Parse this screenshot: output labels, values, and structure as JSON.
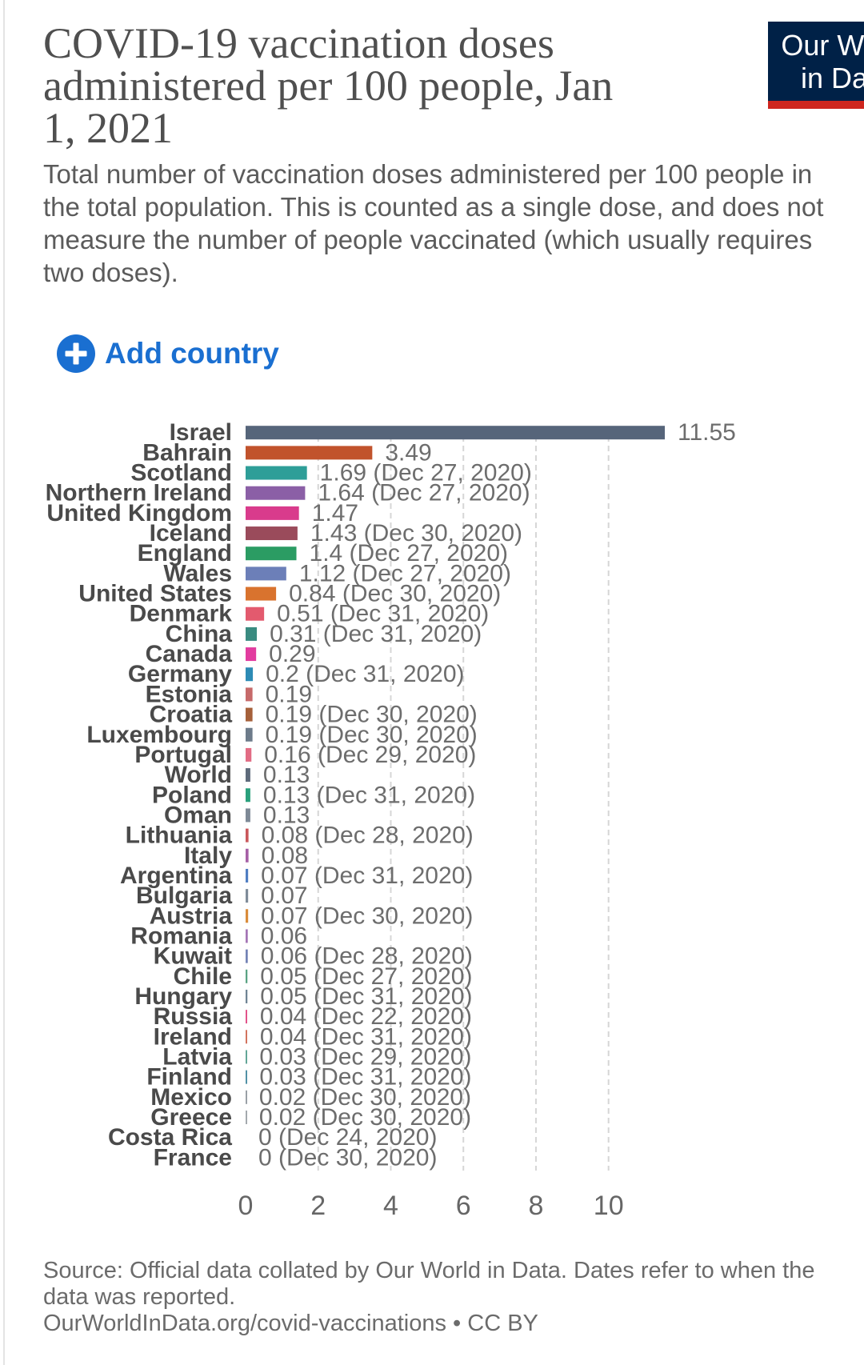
{
  "logo": {
    "line1": "Our World",
    "line2": "in Data",
    "background_color": "#002147",
    "stripe_color": "#ce261e"
  },
  "controls": {
    "add_country_label": "Add country",
    "add_country_icon": "plus-circle-icon",
    "accent_color": "#1a6fd1"
  },
  "chart_data": {
    "type": "bar",
    "orientation": "horizontal",
    "title": "COVID-19 vaccination doses administered per 100 people, Jan 1, 2021",
    "subtitle": "Total number of vaccination doses administered per 100 people in the total population. This is counted as a single dose, and does not measure the number of people vaccinated (which usually requires two doses).",
    "x_ticks": [
      0,
      2,
      4,
      6,
      8,
      10
    ],
    "xlim": [
      0,
      11.55
    ],
    "x_grid": true,
    "grid_style": "dashed",
    "rows": [
      {
        "name": "Israel",
        "value": 11.55,
        "color": "#56657a"
      },
      {
        "name": "Bahrain",
        "value": 3.49,
        "color": "#c1532c"
      },
      {
        "name": "Scotland",
        "value": 1.69,
        "date": "Dec 27, 2020",
        "color": "#2e9e98"
      },
      {
        "name": "Northern Ireland",
        "value": 1.64,
        "date": "Dec 27, 2020",
        "color": "#8b5fa6"
      },
      {
        "name": "United Kingdom",
        "value": 1.47,
        "color": "#d93b8c"
      },
      {
        "name": "Iceland",
        "value": 1.43,
        "date": "Dec 30, 2020",
        "color": "#9a4b5b"
      },
      {
        "name": "England",
        "value": 1.4,
        "date": "Dec 27, 2020",
        "color": "#2b9c63"
      },
      {
        "name": "Wales",
        "value": 1.12,
        "date": "Dec 27, 2020",
        "color": "#6c7fb8"
      },
      {
        "name": "United States",
        "value": 0.84,
        "date": "Dec 30, 2020",
        "color": "#d9732e"
      },
      {
        "name": "Denmark",
        "value": 0.51,
        "date": "Dec 31, 2020",
        "color": "#e35a6e"
      },
      {
        "name": "China",
        "value": 0.31,
        "date": "Dec 31, 2020",
        "color": "#3a8b80"
      },
      {
        "name": "Canada",
        "value": 0.29,
        "color": "#e23c9f"
      },
      {
        "name": "Germany",
        "value": 0.2,
        "date": "Dec 31, 2020",
        "color": "#2d8bb5"
      },
      {
        "name": "Estonia",
        "value": 0.19,
        "color": "#c66a6a"
      },
      {
        "name": "Croatia",
        "value": 0.19,
        "date": "Dec 30, 2020",
        "color": "#a5603a"
      },
      {
        "name": "Luxembourg",
        "value": 0.19,
        "date": "Dec 30, 2020",
        "color": "#6d7b8a"
      },
      {
        "name": "Portugal",
        "value": 0.16,
        "date": "Dec 29, 2020",
        "color": "#e26c84"
      },
      {
        "name": "World",
        "value": 0.13,
        "color": "#5e6b7b"
      },
      {
        "name": "Poland",
        "value": 0.13,
        "date": "Dec 31, 2020",
        "color": "#2aa07c"
      },
      {
        "name": "Oman",
        "value": 0.13,
        "color": "#7e8996"
      },
      {
        "name": "Lithuania",
        "value": 0.08,
        "date": "Dec 28, 2020",
        "color": "#c9575b"
      },
      {
        "name": "Italy",
        "value": 0.08,
        "color": "#a55fa5"
      },
      {
        "name": "Argentina",
        "value": 0.07,
        "date": "Dec 31, 2020",
        "color": "#4f7dc2"
      },
      {
        "name": "Bulgaria",
        "value": 0.07,
        "color": "#7f8c99"
      },
      {
        "name": "Austria",
        "value": 0.07,
        "date": "Dec 30, 2020",
        "color": "#d98c3a"
      },
      {
        "name": "Romania",
        "value": 0.06,
        "color": "#a475b5"
      },
      {
        "name": "Kuwait",
        "value": 0.06,
        "date": "Dec 28, 2020",
        "color": "#7383b5"
      },
      {
        "name": "Chile",
        "value": 0.05,
        "date": "Dec 27, 2020",
        "color": "#5aa383"
      },
      {
        "name": "Hungary",
        "value": 0.05,
        "date": "Dec 31, 2020",
        "color": "#6f8494"
      },
      {
        "name": "Russia",
        "value": 0.04,
        "date": "Dec 22, 2020",
        "color": "#e2538a"
      },
      {
        "name": "Ireland",
        "value": 0.04,
        "date": "Dec 31, 2020",
        "color": "#d2735e"
      },
      {
        "name": "Latvia",
        "value": 0.03,
        "date": "Dec 29, 2020",
        "color": "#63a697"
      },
      {
        "name": "Finland",
        "value": 0.03,
        "date": "Dec 31, 2020",
        "color": "#5191a6"
      },
      {
        "name": "Mexico",
        "value": 0.02,
        "date": "Dec 30, 2020",
        "color": "#9aa0a6"
      },
      {
        "name": "Greece",
        "value": 0.02,
        "date": "Dec 30, 2020",
        "color": "#a4a9ae"
      },
      {
        "name": "Costa Rica",
        "value": 0,
        "date": "Dec 24, 2020",
        "color": "#8a8f95"
      },
      {
        "name": "France",
        "value": 0,
        "date": "Dec 30, 2020",
        "color": "#8a8f95"
      }
    ]
  },
  "footer": {
    "source": "Source: Official data collated by Our World in Data. Dates refer to when the data was reported.",
    "url": "OurWorldInData.org/covid-vaccinations",
    "separator": "•",
    "license": "CC BY"
  }
}
